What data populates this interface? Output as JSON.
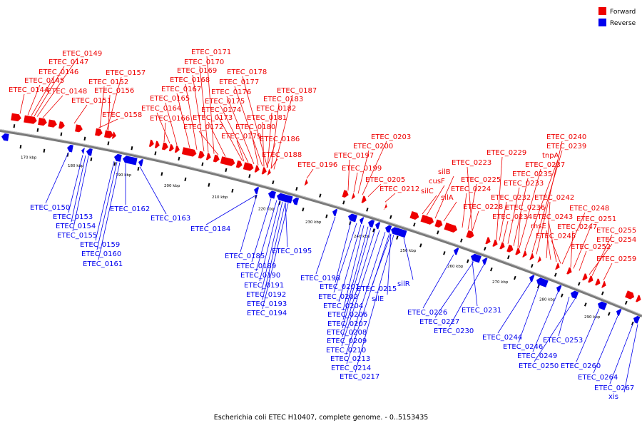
{
  "legend": {
    "forward": {
      "label": "Forward",
      "color": "#ee0000"
    },
    "reverse": {
      "label": "Reverse",
      "color": "#0000ee"
    }
  },
  "caption": "Escherichia coli ETEC H10407, complete genome. - 0..5153435",
  "ticks": [
    "170 kbp",
    "180 kbp",
    "190 kbp",
    "200 kbp",
    "210 kbp",
    "220 kbp",
    "230 kbp",
    "240 kbp",
    "250 kbp",
    "260 kbp",
    "270 kbp",
    "280 kbp",
    "290 kbp"
  ],
  "forward_labels": [
    "ETEC_0149",
    "ETEC_0147",
    "ETEC_0146",
    "ETEC_0145",
    "ETEC_0144",
    "ETEC_0148",
    "ETEC_0157",
    "ETEC_0152",
    "ETEC_0156",
    "ETEC_0151",
    "ETEC_0158",
    "ETEC_0171",
    "ETEC_0170",
    "ETEC_0169",
    "ETEC_0168",
    "ETEC_0167",
    "ETEC_0165",
    "ETEC_0164",
    "ETEC_0166",
    "ETEC_0178",
    "ETEC_0177",
    "ETEC_0176",
    "ETEC_0175",
    "ETEC_0174",
    "ETEC_0173",
    "ETEC_0172",
    "ETEC_0187",
    "ETEC_0183",
    "ETEC_0182",
    "ETEC_0181",
    "ETEC_0180",
    "ETEC_0179",
    "ETEC_0186",
    "ETEC_0188",
    "ETEC_0196",
    "ETEC_0203",
    "ETEC_0200",
    "ETEC_0197",
    "ETEC_0199",
    "ETEC_0205",
    "ETEC_0212",
    "ETEC_0223",
    "silB",
    "cusF",
    "silC",
    "silA",
    "ETEC_0225",
    "ETEC_0224",
    "ETEC_0228",
    "ETEC_0229",
    "ETEC_0240",
    "ETEC_0239",
    "tnpA",
    "ETEC_0237",
    "ETEC_0235",
    "ETEC_0233",
    "ETEC_0232",
    "ETEC_0236",
    "ETEC_0234",
    "ETEC_0242",
    "ETEC_0243",
    "rhsE",
    "ETEC_0245",
    "ETEC_0248",
    "ETEC_0251",
    "ETEC_0247",
    "ETEC_0255",
    "ETEC_0254",
    "ETEC_0252",
    "ETEC_0259"
  ],
  "reverse_labels": [
    "ETEC_0150",
    "ETEC_0153",
    "ETEC_0154",
    "ETEC_0155",
    "ETEC_0159",
    "ETEC_0160",
    "ETEC_0161",
    "ETEC_0162",
    "ETEC_0163",
    "ETEC_0184",
    "ETEC_0185",
    "ETEC_0189",
    "ETEC_0195",
    "ETEC_0190",
    "ETEC_0191",
    "ETEC_0192",
    "ETEC_0193",
    "ETEC_0194",
    "ETEC_0198",
    "ETEC_0201",
    "ETEC_0202",
    "ETEC_0215",
    "silR",
    "silE",
    "ETEC_0204",
    "ETEC_0206",
    "ETEC_0207",
    "ETEC_0208",
    "ETEC_0209",
    "ETEC_0210",
    "ETEC_0213",
    "ETEC_0214",
    "ETEC_0217",
    "ETEC_0226",
    "ETEC_0231",
    "ETEC_0227",
    "ETEC_0230",
    "ETEC_0244",
    "ETEC_0246",
    "ETEC_0249",
    "ETEC_0250",
    "ETEC_0253",
    "ETEC_0260",
    "ETEC_0264",
    "ETEC_0267",
    "xis"
  ]
}
